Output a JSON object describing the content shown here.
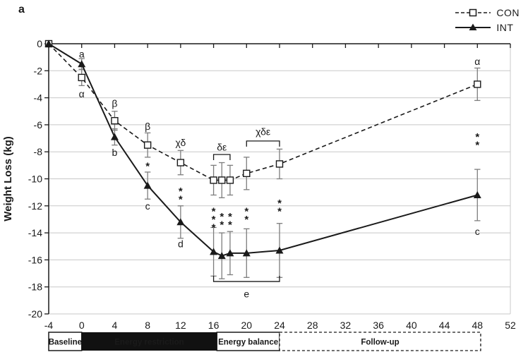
{
  "panel_label": "a",
  "legend": {
    "items": [
      {
        "label": "CON",
        "marker": "open-square",
        "line": "dashed"
      },
      {
        "label": "INT",
        "marker": "filled-triangle",
        "line": "solid"
      }
    ]
  },
  "colors": {
    "line": "#1a1a1a",
    "text": "#1a1a1a",
    "error_bar": "#7d7d7d",
    "grid": "#c8c8c8",
    "phase_filled_bg": "#111111",
    "phase_filled_text": "#ffffff"
  },
  "chart_data": {
    "type": "line",
    "title": "",
    "xlabel": "",
    "ylabel": "Weight Loss (kg)",
    "xlim": [
      -4,
      52
    ],
    "ylim": [
      -20,
      0
    ],
    "xticks": [
      -4,
      0,
      4,
      8,
      12,
      16,
      20,
      24,
      28,
      32,
      36,
      40,
      44,
      48,
      52
    ],
    "yticks": [
      0,
      -2,
      -4,
      -6,
      -8,
      -10,
      -12,
      -14,
      -16,
      -18,
      -20
    ],
    "grid": "horizontal",
    "legend_position": "top-right",
    "series": [
      {
        "name": "CON",
        "line": "dashed",
        "marker": "open-square",
        "points": [
          {
            "x": -4,
            "y": 0,
            "err": 0
          },
          {
            "x": 0,
            "y": -2.5,
            "err": 0.6
          },
          {
            "x": 4,
            "y": -5.7,
            "err": 0.7
          },
          {
            "x": 8,
            "y": -7.5,
            "err": 0.9
          },
          {
            "x": 12,
            "y": -8.8,
            "err": 0.9
          },
          {
            "x": 16,
            "y": -10.1,
            "err": 1.1
          },
          {
            "x": 17,
            "y": -10.1,
            "err": 1.3
          },
          {
            "x": 18,
            "y": -10.1,
            "err": 1.1
          },
          {
            "x": 20,
            "y": -9.6,
            "err": 1.2
          },
          {
            "x": 24,
            "y": -8.9,
            "err": 1.1
          },
          {
            "x": 48,
            "y": -3.0,
            "err": 1.2
          }
        ]
      },
      {
        "name": "INT",
        "line": "solid",
        "marker": "filled-triangle",
        "points": [
          {
            "x": -4,
            "y": 0,
            "err": 0
          },
          {
            "x": 0,
            "y": -1.5,
            "err": 0.4
          },
          {
            "x": 4,
            "y": -6.9,
            "err": 0.6
          },
          {
            "x": 8,
            "y": -10.5,
            "err": 1.0
          },
          {
            "x": 12,
            "y": -13.2,
            "err": 1.2
          },
          {
            "x": 16,
            "y": -15.4,
            "err": 1.8
          },
          {
            "x": 17,
            "y": -15.7,
            "err": 1.7
          },
          {
            "x": 18,
            "y": -15.5,
            "err": 1.6
          },
          {
            "x": 20,
            "y": -15.5,
            "err": 1.8
          },
          {
            "x": 24,
            "y": -15.3,
            "err": 2.0
          },
          {
            "x": 48,
            "y": -11.2,
            "err": 1.9
          }
        ]
      }
    ],
    "annotations": [
      {
        "x": 0,
        "y": -0.75,
        "text": "a",
        "stack": false
      },
      {
        "x": 0,
        "y": -3.7,
        "text": "α",
        "stack": false
      },
      {
        "x": 4,
        "y": -4.4,
        "text": "β",
        "stack": false
      },
      {
        "x": 4,
        "y": -8.05,
        "text": "b",
        "stack": false
      },
      {
        "x": 8,
        "y": -6.1,
        "text": "β",
        "stack": false
      },
      {
        "x": 8,
        "y": -8.95,
        "text": "*",
        "stack": true
      },
      {
        "x": 8,
        "y": -12.0,
        "text": "c",
        "stack": false
      },
      {
        "x": 12,
        "y": -7.3,
        "text": "χδ",
        "stack": false
      },
      {
        "x": 12,
        "y": -10.8,
        "text": "**",
        "stack": true
      },
      {
        "x": 12,
        "y": -14.8,
        "text": "d",
        "stack": false
      },
      {
        "x": 17,
        "y": -7.65,
        "text": "δε",
        "stack": false
      },
      {
        "x": 22,
        "y": -6.5,
        "text": "χδε",
        "stack": false
      },
      {
        "x": 16,
        "y": -12.3,
        "text": "***",
        "stack": true
      },
      {
        "x": 17,
        "y": -12.7,
        "text": "**",
        "stack": true
      },
      {
        "x": 18,
        "y": -12.7,
        "text": "**",
        "stack": true
      },
      {
        "x": 20,
        "y": -12.3,
        "text": "**",
        "stack": true
      },
      {
        "x": 24,
        "y": -11.7,
        "text": "**",
        "stack": true
      },
      {
        "x": 20,
        "y": -18.5,
        "text": "e",
        "stack": false
      },
      {
        "x": 48,
        "y": -1.3,
        "text": "α",
        "stack": false
      },
      {
        "x": 48,
        "y": -6.8,
        "text": "**",
        "stack": true
      },
      {
        "x": 48,
        "y": -13.9,
        "text": "c",
        "stack": false
      }
    ],
    "brackets": [
      {
        "x1": 16,
        "x2": 18,
        "y": -8.2,
        "dir": "down"
      },
      {
        "x1": 20,
        "x2": 24,
        "y": -7.2,
        "dir": "down"
      },
      {
        "x1": 16,
        "x2": 24,
        "y": -17.6,
        "dir": "up"
      }
    ],
    "phases": [
      {
        "label": "Baseline",
        "from": -4,
        "to": 0,
        "style": "outlined"
      },
      {
        "label": "Energy restriction",
        "from": 0,
        "to": 16.4,
        "style": "filled"
      },
      {
        "label": "Energy balance",
        "from": 16.4,
        "to": 24,
        "style": "outlined"
      },
      {
        "label": "Follow-up",
        "from": 24,
        "to": 48.4,
        "style": "dashed"
      }
    ]
  }
}
